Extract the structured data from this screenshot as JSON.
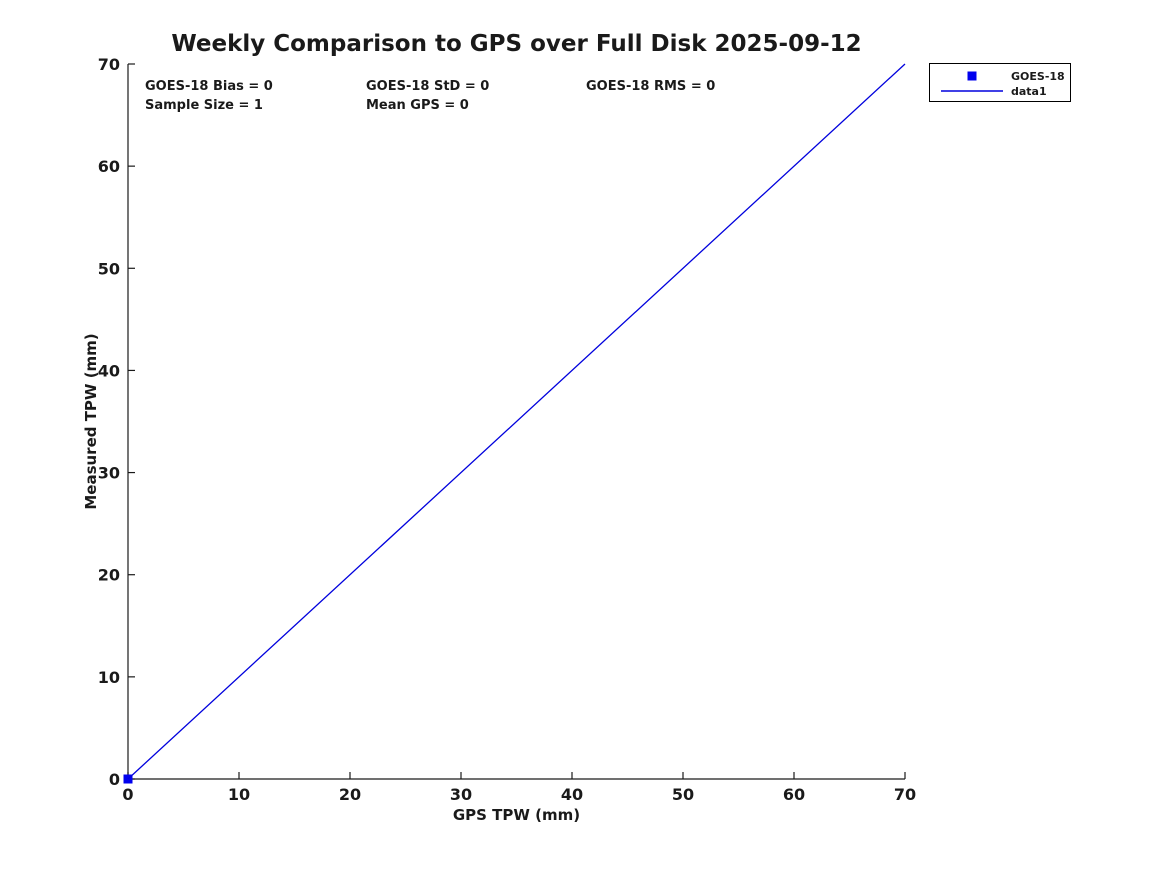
{
  "figure_title": "Weekly Comparison to GPS over Full Disk 2025-09-12",
  "colors": {
    "background": "#ffffff",
    "axis": "#1a1a1a",
    "text": "#1a1a1a",
    "line": "#0000dd",
    "marker": "#0000ee",
    "legend_border": "#000000",
    "legend_background": "#ffffff"
  },
  "chart_data": {
    "type": "line",
    "title": "Weekly Comparison to GPS over Full Disk 2025-09-12",
    "xlabel": "GPS TPW (mm)",
    "ylabel": "Measured TPW (mm)",
    "xlim": [
      0,
      70
    ],
    "ylim": [
      0,
      70
    ],
    "xticks": [
      0,
      10,
      20,
      30,
      40,
      50,
      60,
      70
    ],
    "yticks": [
      0,
      10,
      20,
      30,
      40,
      50,
      60,
      70
    ],
    "grid": false,
    "box": false,
    "series": [
      {
        "name": "GOES-18",
        "kind": "scatter",
        "marker": "filled-square",
        "color": "#0000ee",
        "points": [
          [
            0,
            0
          ]
        ]
      },
      {
        "name": "data1",
        "kind": "line",
        "color": "#0000dd",
        "points": [
          [
            0,
            0
          ],
          [
            70,
            70
          ]
        ]
      }
    ],
    "legend": {
      "position": "outside-top-right",
      "entries": [
        {
          "label": "GOES-18",
          "glyph": "square-marker",
          "color": "#0000ee"
        },
        {
          "label": "data1",
          "glyph": "line",
          "color": "#0000dd"
        }
      ]
    },
    "annotations": [
      {
        "text": "GOES-18 Bias = 0",
        "row": 0,
        "col": 0
      },
      {
        "text": "GOES-18 StD = 0",
        "row": 0,
        "col": 1
      },
      {
        "text": "GOES-18 RMS = 0",
        "row": 0,
        "col": 2
      },
      {
        "text": "Sample Size = 1",
        "row": 1,
        "col": 0
      },
      {
        "text": "Mean GPS = 0",
        "row": 1,
        "col": 1
      }
    ]
  }
}
